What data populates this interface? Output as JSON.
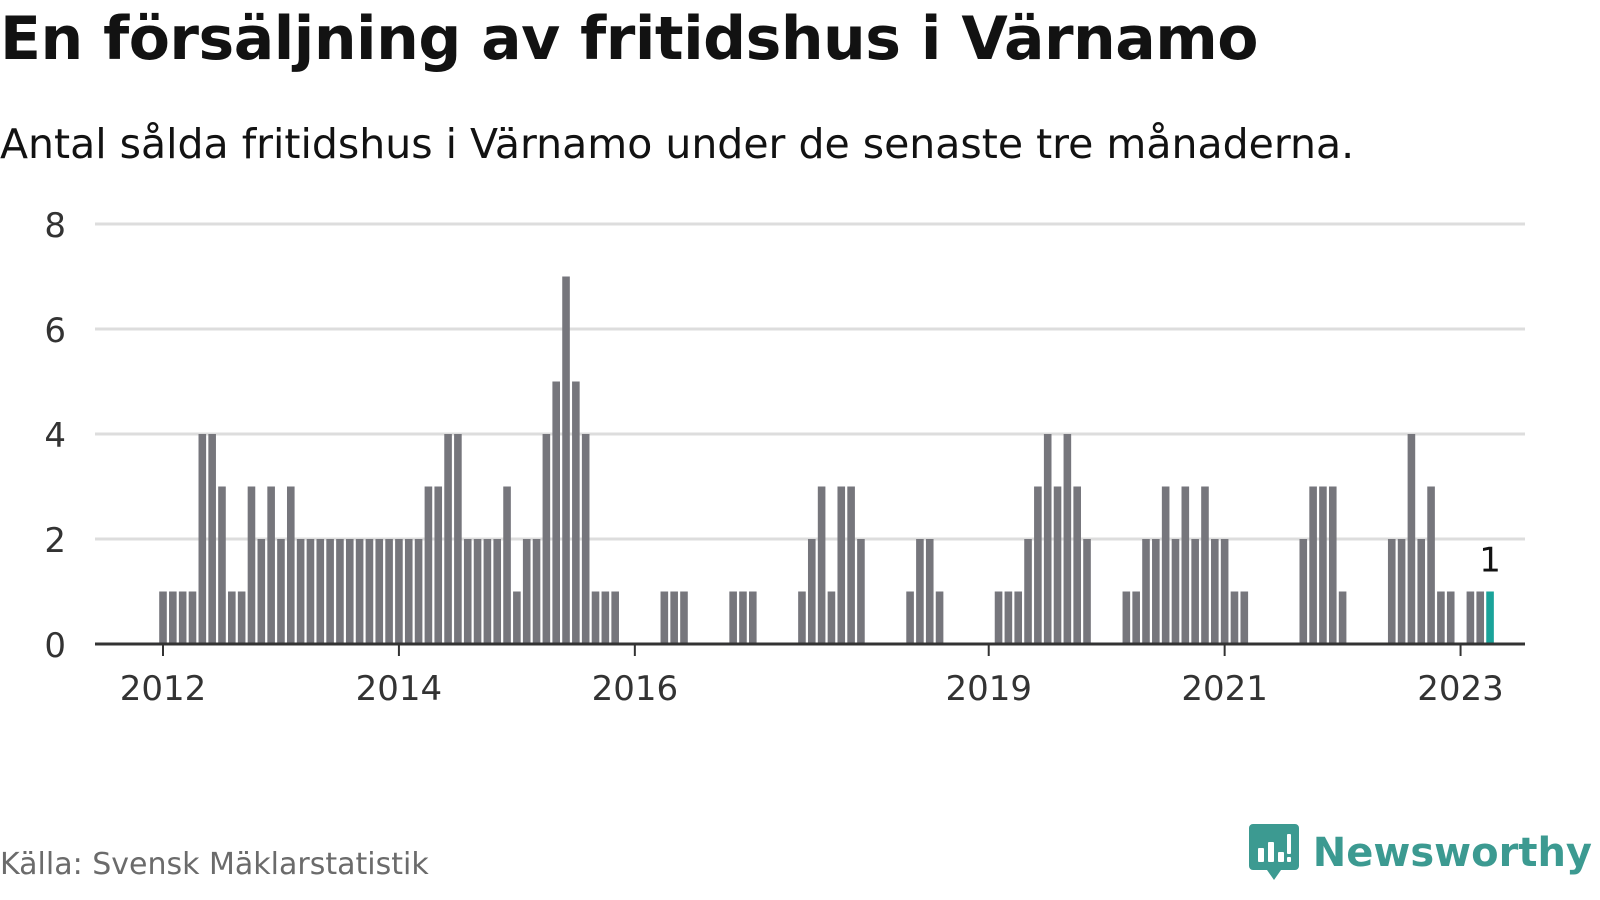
{
  "header": {
    "title": "En försäljning av fritidshus i Värnamo",
    "subtitle": "Antal sålda fritidshus i Värnamo under de senaste tre månaderna."
  },
  "footer": {
    "source": "Källa: Svensk Mäklarstatistik",
    "brand": "Newsworthy",
    "brand_icon": "newsworthy-logo-icon"
  },
  "colors": {
    "bar": "#76767c",
    "highlight": "#1aa39a",
    "grid": "#dddddd",
    "axis": "#333333",
    "text": "#121212",
    "brand": "#3c9a91"
  },
  "chart_data": {
    "type": "bar",
    "title": "En försäljning av fritidshus i Värnamo",
    "xlabel": "",
    "ylabel": "",
    "ylim": [
      0,
      8
    ],
    "yticks": [
      0,
      2,
      4,
      6,
      8
    ],
    "xticks": [
      {
        "label": "2012",
        "index": 0
      },
      {
        "label": "2014",
        "index": 24
      },
      {
        "label": "2016",
        "index": 48
      },
      {
        "label": "2019",
        "index": 84
      },
      {
        "label": "2021",
        "index": 108
      },
      {
        "label": "2023",
        "index": 132
      }
    ],
    "start": "2012-01",
    "frequency": "monthly",
    "values": [
      1,
      1,
      1,
      1,
      4,
      4,
      3,
      1,
      1,
      3,
      2,
      3,
      2,
      3,
      2,
      2,
      2,
      2,
      2,
      2,
      2,
      2,
      2,
      2,
      2,
      2,
      2,
      3,
      3,
      4,
      4,
      2,
      2,
      2,
      2,
      3,
      1,
      2,
      2,
      4,
      5,
      7,
      5,
      4,
      1,
      1,
      1,
      0,
      0,
      0,
      0,
      1,
      1,
      1,
      0,
      0,
      0,
      0,
      1,
      1,
      1,
      0,
      0,
      0,
      0,
      1,
      2,
      3,
      1,
      3,
      3,
      2,
      0,
      0,
      0,
      0,
      1,
      2,
      2,
      1,
      0,
      0,
      0,
      0,
      0,
      1,
      1,
      1,
      2,
      3,
      4,
      3,
      4,
      3,
      2,
      0,
      0,
      0,
      1,
      1,
      2,
      2,
      3,
      2,
      3,
      2,
      3,
      2,
      2,
      1,
      1,
      0,
      0,
      0,
      0,
      0,
      2,
      3,
      3,
      3,
      1,
      0,
      0,
      0,
      0,
      2,
      2,
      4,
      2,
      3,
      1,
      1,
      0,
      1,
      1,
      1
    ],
    "highlight_index": 135,
    "highlight_label": "1"
  }
}
